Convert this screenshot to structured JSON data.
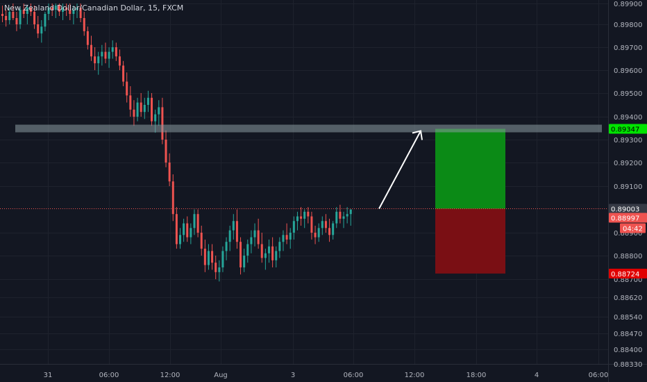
{
  "title": "New Zealand Dollar/Canadian Dollar, 15, FXCM",
  "colors": {
    "background": "#131722",
    "grid": "#1e222d",
    "up": "#26a69a",
    "down": "#ef5350",
    "target_zone": "#0b8a16",
    "stop_zone": "#7a0f14",
    "resistance": "#8a9aa0",
    "current_line": "#ef5350",
    "tp_tag": "#00e400",
    "sl_tag": "#e00000",
    "price_tag": "#ef5350",
    "last_tag": "#363a45"
  },
  "chart_data": {
    "type": "candlestick",
    "symbol": "New Zealand Dollar/Canadian Dollar",
    "interval": "15",
    "source": "FXCM",
    "ylim": [
      0.8833,
      0.899
    ],
    "y_ticks": [
      "0.89900",
      "0.89800",
      "0.89700",
      "0.89600",
      "0.89500",
      "0.89400",
      "0.89300",
      "0.89200",
      "0.89100",
      "0.88900",
      "0.88800",
      "0.88700",
      "0.88620",
      "0.88540",
      "0.88470",
      "0.88400",
      "0.88330"
    ],
    "x_ticks": [
      "31",
      "06:00",
      "12:00",
      "Aug",
      "3",
      "06:00",
      "12:00",
      "18:00",
      "4",
      "06:00"
    ],
    "y_tags": {
      "take_profit": "0.89347",
      "last": "0.89003",
      "current": "0.88997",
      "countdown": "04:42",
      "stop_loss": "0.88724"
    },
    "position": {
      "entry": 0.89003,
      "target": 0.89347,
      "stop": 0.88724
    },
    "resistance_level": 0.8935,
    "candles": [
      [
        0.8985,
        0.8989,
        0.8981,
        0.8984
      ],
      [
        0.8984,
        0.8987,
        0.8979,
        0.8982
      ],
      [
        0.8982,
        0.8988,
        0.898,
        0.8986
      ],
      [
        0.8986,
        0.899,
        0.8982,
        0.8983
      ],
      [
        0.8983,
        0.8986,
        0.8977,
        0.898
      ],
      [
        0.898,
        0.8988,
        0.8978,
        0.8987
      ],
      [
        0.8987,
        0.899,
        0.8983,
        0.8985
      ],
      [
        0.8985,
        0.8989,
        0.898,
        0.8988
      ],
      [
        0.8988,
        0.899,
        0.8984,
        0.8986
      ],
      [
        0.8986,
        0.8989,
        0.8978,
        0.898
      ],
      [
        0.898,
        0.8984,
        0.8974,
        0.8976
      ],
      [
        0.8976,
        0.8982,
        0.8972,
        0.8979
      ],
      [
        0.8979,
        0.8986,
        0.8977,
        0.8985
      ],
      [
        0.8985,
        0.899,
        0.8982,
        0.8988
      ],
      [
        0.8988,
        0.899,
        0.8984,
        0.8987
      ],
      [
        0.8987,
        0.899,
        0.8983,
        0.8989
      ],
      [
        0.8989,
        0.899,
        0.8984,
        0.8986
      ],
      [
        0.8986,
        0.899,
        0.8982,
        0.8988
      ],
      [
        0.8988,
        0.899,
        0.8984,
        0.8987
      ],
      [
        0.8987,
        0.899,
        0.8982,
        0.8985
      ],
      [
        0.8985,
        0.8989,
        0.898,
        0.8987
      ],
      [
        0.8987,
        0.899,
        0.8983,
        0.8988
      ],
      [
        0.8988,
        0.899,
        0.8981,
        0.8983
      ],
      [
        0.8983,
        0.8986,
        0.8975,
        0.8977
      ],
      [
        0.8977,
        0.8979,
        0.8969,
        0.8971
      ],
      [
        0.8971,
        0.8975,
        0.8964,
        0.8966
      ],
      [
        0.8966,
        0.897,
        0.896,
        0.8963
      ],
      [
        0.8963,
        0.8968,
        0.8958,
        0.8966
      ],
      [
        0.8966,
        0.8971,
        0.8962,
        0.8968
      ],
      [
        0.8968,
        0.8972,
        0.8963,
        0.8965
      ],
      [
        0.8965,
        0.897,
        0.8961,
        0.8968
      ],
      [
        0.8968,
        0.8973,
        0.8965,
        0.897
      ],
      [
        0.897,
        0.8972,
        0.8964,
        0.8966
      ],
      [
        0.8966,
        0.8969,
        0.896,
        0.8962
      ],
      [
        0.8962,
        0.8964,
        0.8953,
        0.8955
      ],
      [
        0.8955,
        0.8959,
        0.8946,
        0.8949
      ],
      [
        0.8949,
        0.8953,
        0.894,
        0.8943
      ],
      [
        0.8943,
        0.8947,
        0.8936,
        0.894
      ],
      [
        0.894,
        0.8948,
        0.8938,
        0.8946
      ],
      [
        0.8946,
        0.895,
        0.894,
        0.8942
      ],
      [
        0.8942,
        0.8948,
        0.8939,
        0.8945
      ],
      [
        0.8945,
        0.8951,
        0.8942,
        0.8948
      ],
      [
        0.8948,
        0.895,
        0.8936,
        0.8938
      ],
      [
        0.8938,
        0.8943,
        0.8933,
        0.8941
      ],
      [
        0.8941,
        0.8947,
        0.8936,
        0.8944
      ],
      [
        0.8944,
        0.8948,
        0.8928,
        0.893
      ],
      [
        0.893,
        0.8934,
        0.8918,
        0.892
      ],
      [
        0.892,
        0.8924,
        0.891,
        0.8912
      ],
      [
        0.8912,
        0.8915,
        0.8895,
        0.8898
      ],
      [
        0.8898,
        0.8901,
        0.8883,
        0.8885
      ],
      [
        0.8885,
        0.8892,
        0.8883,
        0.8889
      ],
      [
        0.8889,
        0.8896,
        0.8886,
        0.8894
      ],
      [
        0.8894,
        0.8897,
        0.8886,
        0.8888
      ],
      [
        0.8888,
        0.8894,
        0.8885,
        0.8892
      ],
      [
        0.8892,
        0.89,
        0.8889,
        0.8898
      ],
      [
        0.8898,
        0.89,
        0.8888,
        0.889
      ],
      [
        0.889,
        0.8893,
        0.888,
        0.8883
      ],
      [
        0.8883,
        0.8887,
        0.8873,
        0.8876
      ],
      [
        0.8876,
        0.8885,
        0.8874,
        0.8882
      ],
      [
        0.8882,
        0.8885,
        0.8874,
        0.8877
      ],
      [
        0.8877,
        0.888,
        0.887,
        0.8873
      ],
      [
        0.8873,
        0.8878,
        0.8869,
        0.8875
      ],
      [
        0.8875,
        0.8884,
        0.8873,
        0.8882
      ],
      [
        0.8882,
        0.8888,
        0.8878,
        0.8886
      ],
      [
        0.8886,
        0.8893,
        0.8882,
        0.8891
      ],
      [
        0.8891,
        0.8898,
        0.8887,
        0.8895
      ],
      [
        0.8895,
        0.89,
        0.8883,
        0.8886
      ],
      [
        0.8886,
        0.8888,
        0.8872,
        0.8875
      ],
      [
        0.8875,
        0.8883,
        0.8873,
        0.888
      ],
      [
        0.888,
        0.8887,
        0.8877,
        0.8885
      ],
      [
        0.8885,
        0.8891,
        0.8881,
        0.8888
      ],
      [
        0.8888,
        0.8894,
        0.8884,
        0.8891
      ],
      [
        0.8891,
        0.8896,
        0.8883,
        0.8885
      ],
      [
        0.8885,
        0.889,
        0.8877,
        0.8879
      ],
      [
        0.8879,
        0.8883,
        0.8874,
        0.8881
      ],
      [
        0.8881,
        0.8887,
        0.8877,
        0.8884
      ],
      [
        0.8884,
        0.8888,
        0.8875,
        0.8878
      ],
      [
        0.8878,
        0.8884,
        0.8875,
        0.8882
      ],
      [
        0.8882,
        0.8888,
        0.8879,
        0.8886
      ],
      [
        0.8886,
        0.8891,
        0.8882,
        0.8889
      ],
      [
        0.8889,
        0.8894,
        0.8885,
        0.8887
      ],
      [
        0.8887,
        0.8892,
        0.8883,
        0.889
      ],
      [
        0.889,
        0.8897,
        0.8887,
        0.8895
      ],
      [
        0.8895,
        0.8899,
        0.8891,
        0.8897
      ],
      [
        0.8897,
        0.8901,
        0.8893,
        0.8896
      ],
      [
        0.8896,
        0.89,
        0.8892,
        0.8899
      ],
      [
        0.8899,
        0.8901,
        0.8894,
        0.8897
      ],
      [
        0.8897,
        0.8899,
        0.8887,
        0.889
      ],
      [
        0.889,
        0.8893,
        0.8885,
        0.8888
      ],
      [
        0.8888,
        0.8894,
        0.8886,
        0.8892
      ],
      [
        0.8892,
        0.8897,
        0.8889,
        0.8895
      ],
      [
        0.8895,
        0.8898,
        0.889,
        0.8892
      ],
      [
        0.8892,
        0.8896,
        0.8886,
        0.8889
      ],
      [
        0.8889,
        0.8895,
        0.8887,
        0.8894
      ],
      [
        0.8894,
        0.8901,
        0.8892,
        0.8899
      ],
      [
        0.8899,
        0.8902,
        0.8894,
        0.8896
      ],
      [
        0.8896,
        0.8899,
        0.8892,
        0.8897
      ],
      [
        0.8897,
        0.8901,
        0.8894,
        0.8898
      ],
      [
        0.8898,
        0.89,
        0.8893,
        0.89
      ]
    ]
  }
}
